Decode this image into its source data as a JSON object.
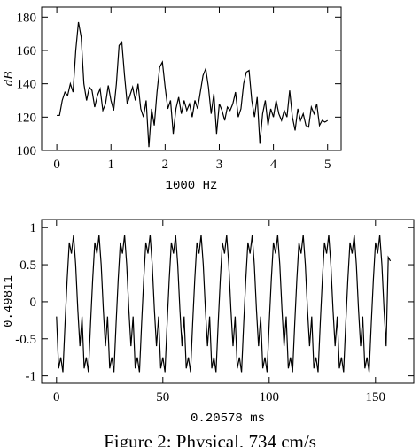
{
  "chart_data": [
    {
      "type": "line",
      "xlabel": "1000 Hz",
      "ylabel": "dB",
      "xlim": [
        -0.28,
        5.25
      ],
      "ylim": [
        100,
        186
      ],
      "xticks": [
        0,
        1,
        2,
        3,
        4,
        5
      ],
      "yticks": [
        100,
        120,
        140,
        160,
        180
      ],
      "color": "#000000",
      "x": [
        0,
        0.05,
        0.1,
        0.15,
        0.2,
        0.25,
        0.3,
        0.35,
        0.4,
        0.45,
        0.5,
        0.55,
        0.6,
        0.65,
        0.7,
        0.75,
        0.8,
        0.85,
        0.9,
        0.95,
        1,
        1.05,
        1.1,
        1.15,
        1.2,
        1.25,
        1.3,
        1.35,
        1.4,
        1.45,
        1.5,
        1.55,
        1.6,
        1.65,
        1.7,
        1.75,
        1.8,
        1.85,
        1.9,
        1.95,
        2,
        2.05,
        2.1,
        2.15,
        2.2,
        2.25,
        2.3,
        2.35,
        2.4,
        2.45,
        2.5,
        2.55,
        2.6,
        2.65,
        2.7,
        2.75,
        2.8,
        2.85,
        2.9,
        2.95,
        3,
        3.05,
        3.1,
        3.15,
        3.2,
        3.25,
        3.3,
        3.35,
        3.4,
        3.45,
        3.5,
        3.55,
        3.6,
        3.65,
        3.7,
        3.75,
        3.8,
        3.85,
        3.9,
        3.95,
        4,
        4.05,
        4.1,
        4.15,
        4.2,
        4.25,
        4.3,
        4.35,
        4.4,
        4.45,
        4.5,
        4.55,
        4.6,
        4.65,
        4.7,
        4.75,
        4.8,
        4.85,
        4.9,
        4.95,
        5
      ],
      "values": [
        121,
        121,
        130,
        135,
        133,
        140,
        135,
        160,
        177,
        168,
        140,
        130,
        138,
        136,
        126,
        133,
        137,
        124,
        128,
        139,
        130,
        124,
        140,
        163,
        165,
        145,
        128,
        133,
        138,
        130,
        140,
        125,
        120,
        130,
        102,
        125,
        115,
        135,
        150,
        153,
        138,
        125,
        130,
        110,
        125,
        132,
        122,
        130,
        124,
        128,
        120,
        130,
        125,
        135,
        145,
        149,
        138,
        122,
        134,
        110,
        128,
        124,
        118,
        126,
        124,
        128,
        135,
        120,
        125,
        140,
        147,
        148,
        130,
        120,
        132,
        104,
        122,
        130,
        115,
        125,
        120,
        130,
        122,
        118,
        124,
        120,
        136,
        120,
        112,
        125,
        118,
        122,
        115,
        114,
        126,
        122,
        128,
        115,
        118,
        117,
        118
      ]
    },
    {
      "type": "line",
      "xlabel": "0.20578 ms",
      "ylabel": "0.49811",
      "xlim": [
        -7,
        168
      ],
      "ylim": [
        -1.1,
        1.11
      ],
      "xticks": [
        0,
        50,
        100,
        150
      ],
      "yticks": [
        -1,
        -0.5,
        0,
        0.5,
        1
      ],
      "color": "#000000",
      "x": [
        0,
        1,
        2,
        3,
        4,
        5,
        6,
        7,
        8,
        9,
        10,
        11,
        12,
        13,
        14,
        15,
        16,
        17,
        18,
        19,
        20,
        21,
        22,
        23,
        24,
        25,
        26,
        27,
        28,
        29,
        30,
        31,
        32,
        33,
        34,
        35,
        36,
        37,
        38,
        39,
        40,
        41,
        42,
        43,
        44,
        45,
        46,
        47,
        48,
        49,
        50,
        51,
        52,
        53,
        54,
        55,
        56,
        57,
        58,
        59,
        60,
        61,
        62,
        63,
        64,
        65,
        66,
        67,
        68,
        69,
        70,
        71,
        72,
        73,
        74,
        75,
        76,
        77,
        78,
        79,
        80,
        81,
        82,
        83,
        84,
        85,
        86,
        87,
        88,
        89,
        90,
        91,
        92,
        93,
        94,
        95,
        96,
        97,
        98,
        99,
        100,
        101,
        102,
        103,
        104,
        105,
        106,
        107,
        108,
        109,
        110,
        111,
        112,
        113,
        114,
        115,
        116,
        117,
        118,
        119,
        120,
        121,
        122,
        123,
        124,
        125,
        126,
        127,
        128,
        129,
        130,
        131,
        132,
        133,
        134,
        135,
        136,
        137,
        138,
        139,
        140,
        141,
        142,
        143,
        144,
        145,
        146,
        147,
        148,
        149,
        150,
        151,
        152,
        153,
        154,
        155,
        156,
        157
      ],
      "values": [
        -0.2,
        -0.9,
        -0.75,
        -0.95,
        -0.3,
        0.3,
        0.8,
        0.65,
        0.9,
        0.5,
        -0.1,
        -0.6,
        -0.2,
        -0.9,
        -0.75,
        -0.95,
        -0.3,
        0.3,
        0.8,
        0.65,
        0.9,
        0.5,
        -0.1,
        -0.6,
        -0.2,
        -0.9,
        -0.75,
        -0.95,
        -0.3,
        0.3,
        0.8,
        0.65,
        0.9,
        0.5,
        -0.1,
        -0.6,
        -0.2,
        -0.9,
        -0.75,
        -0.95,
        -0.3,
        0.3,
        0.8,
        0.65,
        0.9,
        0.5,
        -0.1,
        -0.6,
        -0.2,
        -0.9,
        -0.75,
        -0.95,
        -0.3,
        0.3,
        0.8,
        0.65,
        0.9,
        0.5,
        -0.1,
        -0.6,
        -0.2,
        -0.9,
        -0.75,
        -0.95,
        -0.3,
        0.3,
        0.8,
        0.65,
        0.9,
        0.5,
        -0.1,
        -0.6,
        -0.2,
        -0.9,
        -0.75,
        -0.95,
        -0.3,
        0.3,
        0.8,
        0.65,
        0.9,
        0.5,
        -0.1,
        -0.6,
        -0.2,
        -0.9,
        -0.75,
        -0.95,
        -0.3,
        0.3,
        0.8,
        0.65,
        0.9,
        0.5,
        -0.1,
        -0.6,
        -0.2,
        -0.9,
        -0.75,
        -0.95,
        -0.3,
        0.3,
        0.8,
        0.65,
        0.9,
        0.5,
        -0.1,
        -0.6,
        -0.2,
        -0.9,
        -0.75,
        -0.95,
        -0.3,
        0.3,
        0.8,
        0.65,
        0.9,
        0.5,
        -0.1,
        -0.6,
        -0.2,
        -0.9,
        -0.75,
        -0.95,
        -0.3,
        0.3,
        0.8,
        0.65,
        0.9,
        0.5,
        -0.1,
        -0.6,
        -0.2,
        -0.9,
        -0.75,
        -0.95,
        -0.3,
        0.3,
        0.8,
        0.65,
        0.9,
        0.5,
        -0.1,
        -0.6,
        -0.2,
        -0.9,
        -0.75,
        -0.95,
        -0.3,
        0.3,
        0.8,
        0.65,
        0.9,
        0.5,
        -0.1,
        -0.6,
        0.6,
        0.55
      ]
    }
  ],
  "caption": "Figure 2: Physical, 734 cm/s"
}
